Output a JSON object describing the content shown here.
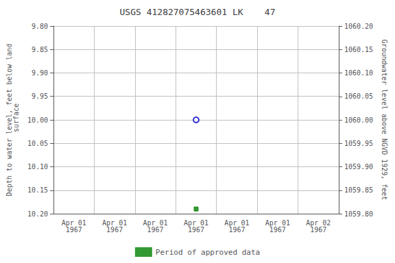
{
  "chart_data": {
    "type": "scatter",
    "title": "USGS 412827075463601 LK    47",
    "ylabel": "Depth to water level, feet below land\n surface",
    "y2label": "Groundwater level above NGVD 1929, feet",
    "categories": [
      "Apr 01\n1967",
      "Apr 01\n1967",
      "Apr 01\n1967",
      "Apr 01\n1967",
      "Apr 01\n1967",
      "Apr 01\n1967",
      "Apr 02\n1967"
    ],
    "series": [
      {
        "color": "#0000cc",
        "marker": "open_circle",
        "values": [
          null,
          null,
          null,
          10.0,
          null,
          null,
          null
        ]
      },
      {
        "name": "Period of approved data",
        "color": "#008000",
        "marker": "square",
        "values": [
          null,
          null,
          null,
          10.19,
          null,
          null,
          null
        ]
      }
    ],
    "ylim": [
      10.2,
      9.8
    ],
    "yticks": [
      {
        "value": 9.8,
        "label": "9.80"
      },
      {
        "value": 9.85,
        "label": "9.85"
      },
      {
        "value": 9.9,
        "label": "9.90"
      },
      {
        "value": 9.95,
        "label": "9.95"
      },
      {
        "value": 10.0,
        "label": "10.00"
      },
      {
        "value": 10.05,
        "label": "10.05"
      },
      {
        "value": 10.1,
        "label": "10.10"
      },
      {
        "value": 10.15,
        "label": "10.15"
      },
      {
        "value": 10.2,
        "label": "10.20"
      }
    ],
    "y2lim": [
      1059.8,
      1060.2
    ],
    "y2ticks": [
      {
        "value": 1059.8,
        "label": "1059.80"
      },
      {
        "value": 1059.85,
        "label": "1059.85"
      },
      {
        "value": 1059.9,
        "label": "1059.90"
      },
      {
        "value": 1059.95,
        "label": "1059.95"
      },
      {
        "value": 1060.0,
        "label": "1060.00"
      },
      {
        "value": 1060.05,
        "label": "1060.05"
      },
      {
        "value": 1060.1,
        "label": "1060.10"
      },
      {
        "value": 1060.15,
        "label": "1060.15"
      },
      {
        "value": 1060.2,
        "label": "1060.20"
      }
    ],
    "grid": true,
    "legend": "bottom"
  }
}
